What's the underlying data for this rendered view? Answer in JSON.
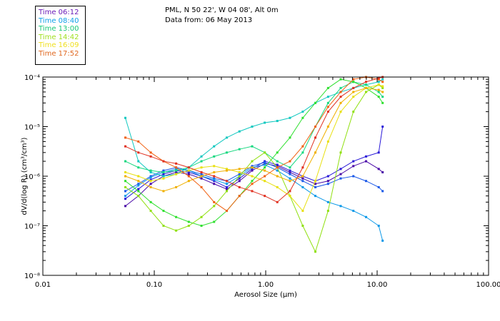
{
  "chart_data": {
    "type": "line",
    "title_line1": "PML, N 50 22', W 04 08', Alt 0m",
    "title_line2": "Data from: 06 May 2013",
    "xlabel": "Aerosol Size (µm)",
    "ylabel": "dV/d(log R) (cm³/cm³)",
    "xscale": "log",
    "yscale": "log",
    "xlim": [
      0.01,
      100
    ],
    "ylim": [
      1e-08,
      0.0001
    ],
    "x_ticks": [
      {
        "value": 0.01,
        "label": "0.01"
      },
      {
        "value": 0.1,
        "label": "0.10"
      },
      {
        "value": 1,
        "label": "1.00"
      },
      {
        "value": 10,
        "label": "10.00"
      },
      {
        "value": 100,
        "label": "100.00"
      }
    ],
    "y_ticks": [
      {
        "value": 1e-08,
        "label": "10⁻⁸"
      },
      {
        "value": 1e-07,
        "label": "10⁻⁷"
      },
      {
        "value": 1e-06,
        "label": "10⁻⁶"
      },
      {
        "value": 1e-05,
        "label": "10⁻⁵"
      },
      {
        "value": 0.0001,
        "label": "10⁻⁴"
      }
    ],
    "x": [
      0.055,
      0.072,
      0.093,
      0.121,
      0.157,
      0.204,
      0.265,
      0.344,
      0.447,
      0.581,
      0.755,
      0.98,
      1.27,
      1.65,
      2.15,
      2.79,
      3.63,
      4.71,
      6.12,
      7.95,
      10.33,
      11.2
    ],
    "series": [
      {
        "name": "Time 06:12",
        "color": "#4a0aa8",
        "values": [
          2.5e-07,
          4e-07,
          7e-07,
          1e-06,
          1.2e-06,
          1.1e-06,
          9e-07,
          7e-07,
          5.5e-07,
          8e-07,
          1.3e-06,
          1.8e-06,
          1.6e-06,
          1.2e-06,
          9e-07,
          7e-07,
          8e-07,
          1.1e-06,
          1.6e-06,
          2e-06,
          1.4e-06,
          1.2e-06
        ]
      },
      {
        "name": "Time 06:12",
        "color": "#2a1ad8",
        "values": [
          3.5e-07,
          5.5e-07,
          8.5e-07,
          1.1e-06,
          1.3e-06,
          1.2e-06,
          1e-06,
          8e-07,
          6e-07,
          9e-07,
          1.4e-06,
          2e-06,
          1.7e-06,
          1.3e-06,
          1e-06,
          8e-07,
          1e-06,
          1.4e-06,
          2e-06,
          2.5e-06,
          3e-06,
          1e-05
        ]
      },
      {
        "name": "Time 08:40",
        "color": "#1a58e8",
        "values": [
          5e-07,
          7e-07,
          1e-06,
          1.3e-06,
          1.5e-06,
          1.3e-06,
          1.1e-06,
          9e-07,
          8e-07,
          1.1e-06,
          1.6e-06,
          1.9e-06,
          1.5e-06,
          1.1e-06,
          8e-07,
          6e-07,
          7e-07,
          9e-07,
          1e-06,
          8e-07,
          6e-07,
          5e-07
        ]
      },
      {
        "name": "Time 08:40",
        "color": "#0a98e8",
        "values": [
          4e-07,
          6.5e-07,
          9.5e-07,
          1.2e-06,
          1.4e-06,
          1.3e-06,
          1e-06,
          8.5e-07,
          7e-07,
          1e-06,
          1.5e-06,
          1.7e-06,
          1.3e-06,
          9e-07,
          6e-07,
          4e-07,
          3e-07,
          2.5e-07,
          2e-07,
          1.5e-07,
          1e-07,
          5e-08
        ]
      },
      {
        "name": "Time 13:00",
        "color": "#10c8c0",
        "values": [
          1.5e-05,
          2e-06,
          1.2e-06,
          1e-06,
          1.1e-06,
          1.5e-06,
          2.5e-06,
          4e-06,
          6e-06,
          8e-06,
          1e-05,
          1.2e-05,
          1.3e-05,
          1.5e-05,
          2e-05,
          3e-05,
          4e-05,
          5e-05,
          6e-05,
          7e-05,
          8e-05,
          9e-05
        ]
      },
      {
        "name": "Time 13:00",
        "color": "#18d880",
        "values": [
          2e-06,
          1.5e-06,
          1.3e-06,
          1.2e-06,
          1.3e-06,
          1.5e-06,
          2e-06,
          2.5e-06,
          3e-06,
          3.5e-06,
          4e-06,
          3e-06,
          2e-06,
          1.5e-06,
          3e-06,
          1e-05,
          3e-05,
          6e-05,
          8e-05,
          7e-05,
          5e-05,
          4e-05
        ]
      },
      {
        "name": "Time 14:42",
        "color": "#30e030",
        "values": [
          8e-07,
          5e-07,
          3e-07,
          2e-07,
          1.5e-07,
          1.2e-07,
          1e-07,
          1.2e-07,
          2e-07,
          4e-07,
          8e-07,
          1.5e-06,
          3e-06,
          6e-06,
          1.5e-05,
          3e-05,
          6e-05,
          9e-05,
          8e-05,
          6e-05,
          4e-05,
          3e-05
        ]
      },
      {
        "name": "Time 14:42",
        "color": "#90e010",
        "values": [
          6e-07,
          4e-07,
          2e-07,
          1e-07,
          8e-08,
          1e-07,
          1.5e-07,
          2.5e-07,
          5e-07,
          1e-06,
          2e-06,
          3e-06,
          1.5e-06,
          4e-07,
          1e-07,
          3e-08,
          2e-07,
          3e-06,
          2e-05,
          5e-05,
          7e-05,
          6e-05
        ]
      },
      {
        "name": "Time 16:09",
        "color": "#e8e010",
        "values": [
          1.2e-06,
          1e-06,
          8e-07,
          9e-07,
          1.1e-06,
          1.3e-06,
          1.5e-06,
          1.6e-06,
          1.4e-06,
          1.2e-06,
          1e-06,
          8e-07,
          6e-07,
          4e-07,
          2e-07,
          8e-07,
          5e-06,
          2e-05,
          4e-05,
          6e-05,
          7e-05,
          6.5e-05
        ]
      },
      {
        "name": "Time 16:09",
        "color": "#f0b000",
        "values": [
          1e-06,
          8e-07,
          6e-07,
          5e-07,
          6e-07,
          8e-07,
          1e-06,
          1.2e-06,
          1.3e-06,
          1.4e-06,
          1.5e-06,
          1.3e-06,
          1e-06,
          8e-07,
          1e-06,
          3e-06,
          1e-05,
          3e-05,
          5e-05,
          6e-05,
          5.5e-05,
          5e-05
        ]
      },
      {
        "name": "Time 17:52",
        "color": "#f06010",
        "values": [
          6e-06,
          5e-06,
          3e-06,
          2e-06,
          1.5e-06,
          1e-06,
          6e-07,
          3e-07,
          2e-07,
          4e-07,
          7e-07,
          1e-06,
          1.5e-06,
          2e-06,
          4e-06,
          1e-05,
          2.5e-05,
          5e-05,
          9e-05,
          0.0001,
          9e-05,
          8e-05
        ]
      },
      {
        "name": "Time 17:52",
        "color": "#e03020",
        "values": [
          4e-06,
          3e-06,
          2.5e-06,
          2e-06,
          1.8e-06,
          1.5e-06,
          1.2e-06,
          1e-06,
          8e-07,
          6e-07,
          5e-07,
          4e-07,
          3e-07,
          5e-07,
          1.5e-06,
          6e-06,
          2e-05,
          4e-05,
          6e-05,
          8e-05,
          9.5e-05,
          0.0001
        ]
      }
    ]
  },
  "legend": [
    {
      "label": "Time 06:12",
      "color": "#6a1ab8"
    },
    {
      "label": "Time 08:40",
      "color": "#10a0e8"
    },
    {
      "label": "Time 13:00",
      "color": "#18c878"
    },
    {
      "label": "Time 14:42",
      "color": "#a0e020"
    },
    {
      "label": "Time 16:09",
      "color": "#f0e020"
    },
    {
      "label": "Time 17:52",
      "color": "#e06820"
    }
  ]
}
